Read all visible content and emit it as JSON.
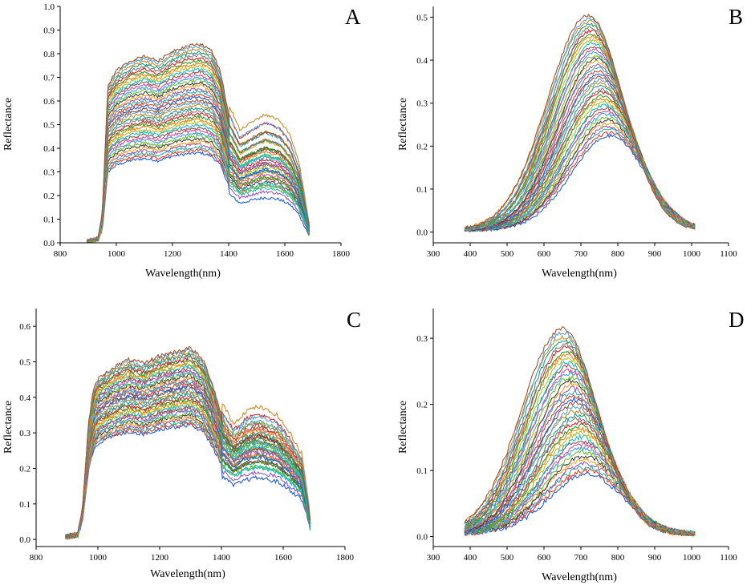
{
  "figure": {
    "description_none": "",
    "series_count_per_panel": 40
  },
  "chart_data": [
    {
      "panel": "A",
      "type": "line",
      "xlabel": "Wavelength(nm)",
      "ylabel": "Reflectance",
      "xlim": [
        800,
        1800
      ],
      "ylim": [
        0.0,
        1.0
      ],
      "xticks": [
        800,
        1000,
        1200,
        1400,
        1600,
        1800
      ],
      "yticks": [
        0.0,
        0.1,
        0.2,
        0.3,
        0.4,
        0.5,
        0.6,
        0.7,
        0.8,
        0.9,
        1.0
      ],
      "xtick_labels": [
        "800",
        "1000",
        "1200",
        "1400",
        "1600",
        "1800"
      ],
      "ytick_labels": [
        "0.0",
        "0.1",
        "0.2",
        "0.3",
        "0.4",
        "0.5",
        "0.6",
        "0.7",
        "0.8",
        "0.9",
        "1.0"
      ],
      "x_range": [
        895,
        1690
      ],
      "shape_points": [
        [
          895,
          0.01
        ],
        [
          935,
          0.02
        ],
        [
          950,
          0.12
        ],
        [
          970,
          0.64
        ],
        [
          1000,
          0.7
        ],
        [
          1050,
          0.74
        ],
        [
          1100,
          0.76
        ],
        [
          1150,
          0.74
        ],
        [
          1200,
          0.78
        ],
        [
          1250,
          0.8
        ],
        [
          1300,
          0.81
        ],
        [
          1340,
          0.78
        ],
        [
          1370,
          0.7
        ],
        [
          1400,
          0.52
        ],
        [
          1440,
          0.42
        ],
        [
          1480,
          0.45
        ],
        [
          1530,
          0.48
        ],
        [
          1580,
          0.46
        ],
        [
          1620,
          0.4
        ],
        [
          1650,
          0.3
        ],
        [
          1675,
          0.15
        ],
        [
          1690,
          0.05
        ]
      ],
      "scale_range": [
        0.47,
        1.04
      ],
      "max_reflectance": 0.84
    },
    {
      "panel": "B",
      "type": "line",
      "xlabel": "Wavelength(nm)",
      "ylabel": "Reflectance",
      "xlim": [
        300,
        1100
      ],
      "ylim": [
        -0.025,
        0.525
      ],
      "xticks": [
        300,
        400,
        500,
        600,
        700,
        800,
        900,
        1000,
        1100
      ],
      "yticks": [
        0.0,
        0.1,
        0.2,
        0.3,
        0.4,
        0.5
      ],
      "xtick_labels": [
        "300",
        "400",
        "500",
        "600",
        "700",
        "800",
        "900",
        "1000",
        "1100"
      ],
      "ytick_labels": [
        "0.0",
        "0.1",
        "0.2",
        "0.3",
        "0.4",
        "0.5"
      ],
      "x_range": [
        385,
        1010
      ],
      "peak_range": [
        0.22,
        0.5
      ],
      "peak_wavelength_range": [
        720,
        780
      ],
      "max_reflectance": 0.5
    },
    {
      "panel": "C",
      "type": "line",
      "xlabel": "Wavelength(nm)",
      "ylabel": "Reflectance",
      "xlim": [
        800,
        1800
      ],
      "ylim": [
        -0.02,
        0.65
      ],
      "xticks": [
        800,
        1000,
        1200,
        1400,
        1600,
        1800
      ],
      "yticks": [
        0.0,
        0.1,
        0.2,
        0.3,
        0.4,
        0.5,
        0.6
      ],
      "xtick_labels": [
        "800",
        "1000",
        "1200",
        "1400",
        "1600",
        "1800"
      ],
      "ytick_labels": [
        "0.0",
        "0.1",
        "0.2",
        "0.3",
        "0.4",
        "0.5",
        "0.6"
      ],
      "x_range": [
        895,
        1690
      ],
      "shape_points": [
        [
          895,
          0.008
        ],
        [
          935,
          0.015
        ],
        [
          950,
          0.08
        ],
        [
          970,
          0.3
        ],
        [
          985,
          0.38
        ],
        [
          1000,
          0.41
        ],
        [
          1050,
          0.44
        ],
        [
          1100,
          0.46
        ],
        [
          1150,
          0.45
        ],
        [
          1200,
          0.47
        ],
        [
          1250,
          0.48
        ],
        [
          1300,
          0.49
        ],
        [
          1340,
          0.46
        ],
        [
          1370,
          0.4
        ],
        [
          1400,
          0.32
        ],
        [
          1440,
          0.27
        ],
        [
          1480,
          0.3
        ],
        [
          1520,
          0.31
        ],
        [
          1580,
          0.29
        ],
        [
          1620,
          0.25
        ],
        [
          1660,
          0.2
        ],
        [
          1680,
          0.1
        ],
        [
          1690,
          0.03
        ]
      ],
      "scale_range": [
        0.66,
        1.1
      ],
      "max_reflectance": 0.54
    },
    {
      "panel": "D",
      "type": "line",
      "xlabel": "Wavelength(nm)",
      "ylabel": "Reflectance",
      "xlim": [
        300,
        1100
      ],
      "ylim": [
        -0.015,
        0.345
      ],
      "xticks": [
        300,
        400,
        500,
        600,
        700,
        800,
        900,
        1000,
        1100
      ],
      "yticks": [
        0.0,
        0.1,
        0.2,
        0.3
      ],
      "xtick_labels": [
        "300",
        "400",
        "500",
        "600",
        "700",
        "800",
        "900",
        "1000",
        "1100"
      ],
      "ytick_labels": [
        "0.0",
        "0.1",
        "0.2",
        "0.3"
      ],
      "x_range": [
        385,
        1010
      ],
      "peak_range": [
        0.09,
        0.31
      ],
      "peak_wavelength_range": [
        650,
        720
      ],
      "max_reflectance": 0.31
    }
  ],
  "colors": {
    "axis": "#000000",
    "series_palette": [
      "#1f5fd6",
      "#e8402a",
      "#2bb3a6",
      "#9b59b6",
      "#f5a623",
      "#444444",
      "#6cbf3a",
      "#3aa0e8",
      "#d64f9c",
      "#8c564b",
      "#17becf",
      "#bcbd22",
      "#ff7f0e",
      "#2ca02c",
      "#d62728",
      "#7f7f7f",
      "#1a9c8c",
      "#c98b2a",
      "#5aa0d0",
      "#a0522d"
    ]
  }
}
